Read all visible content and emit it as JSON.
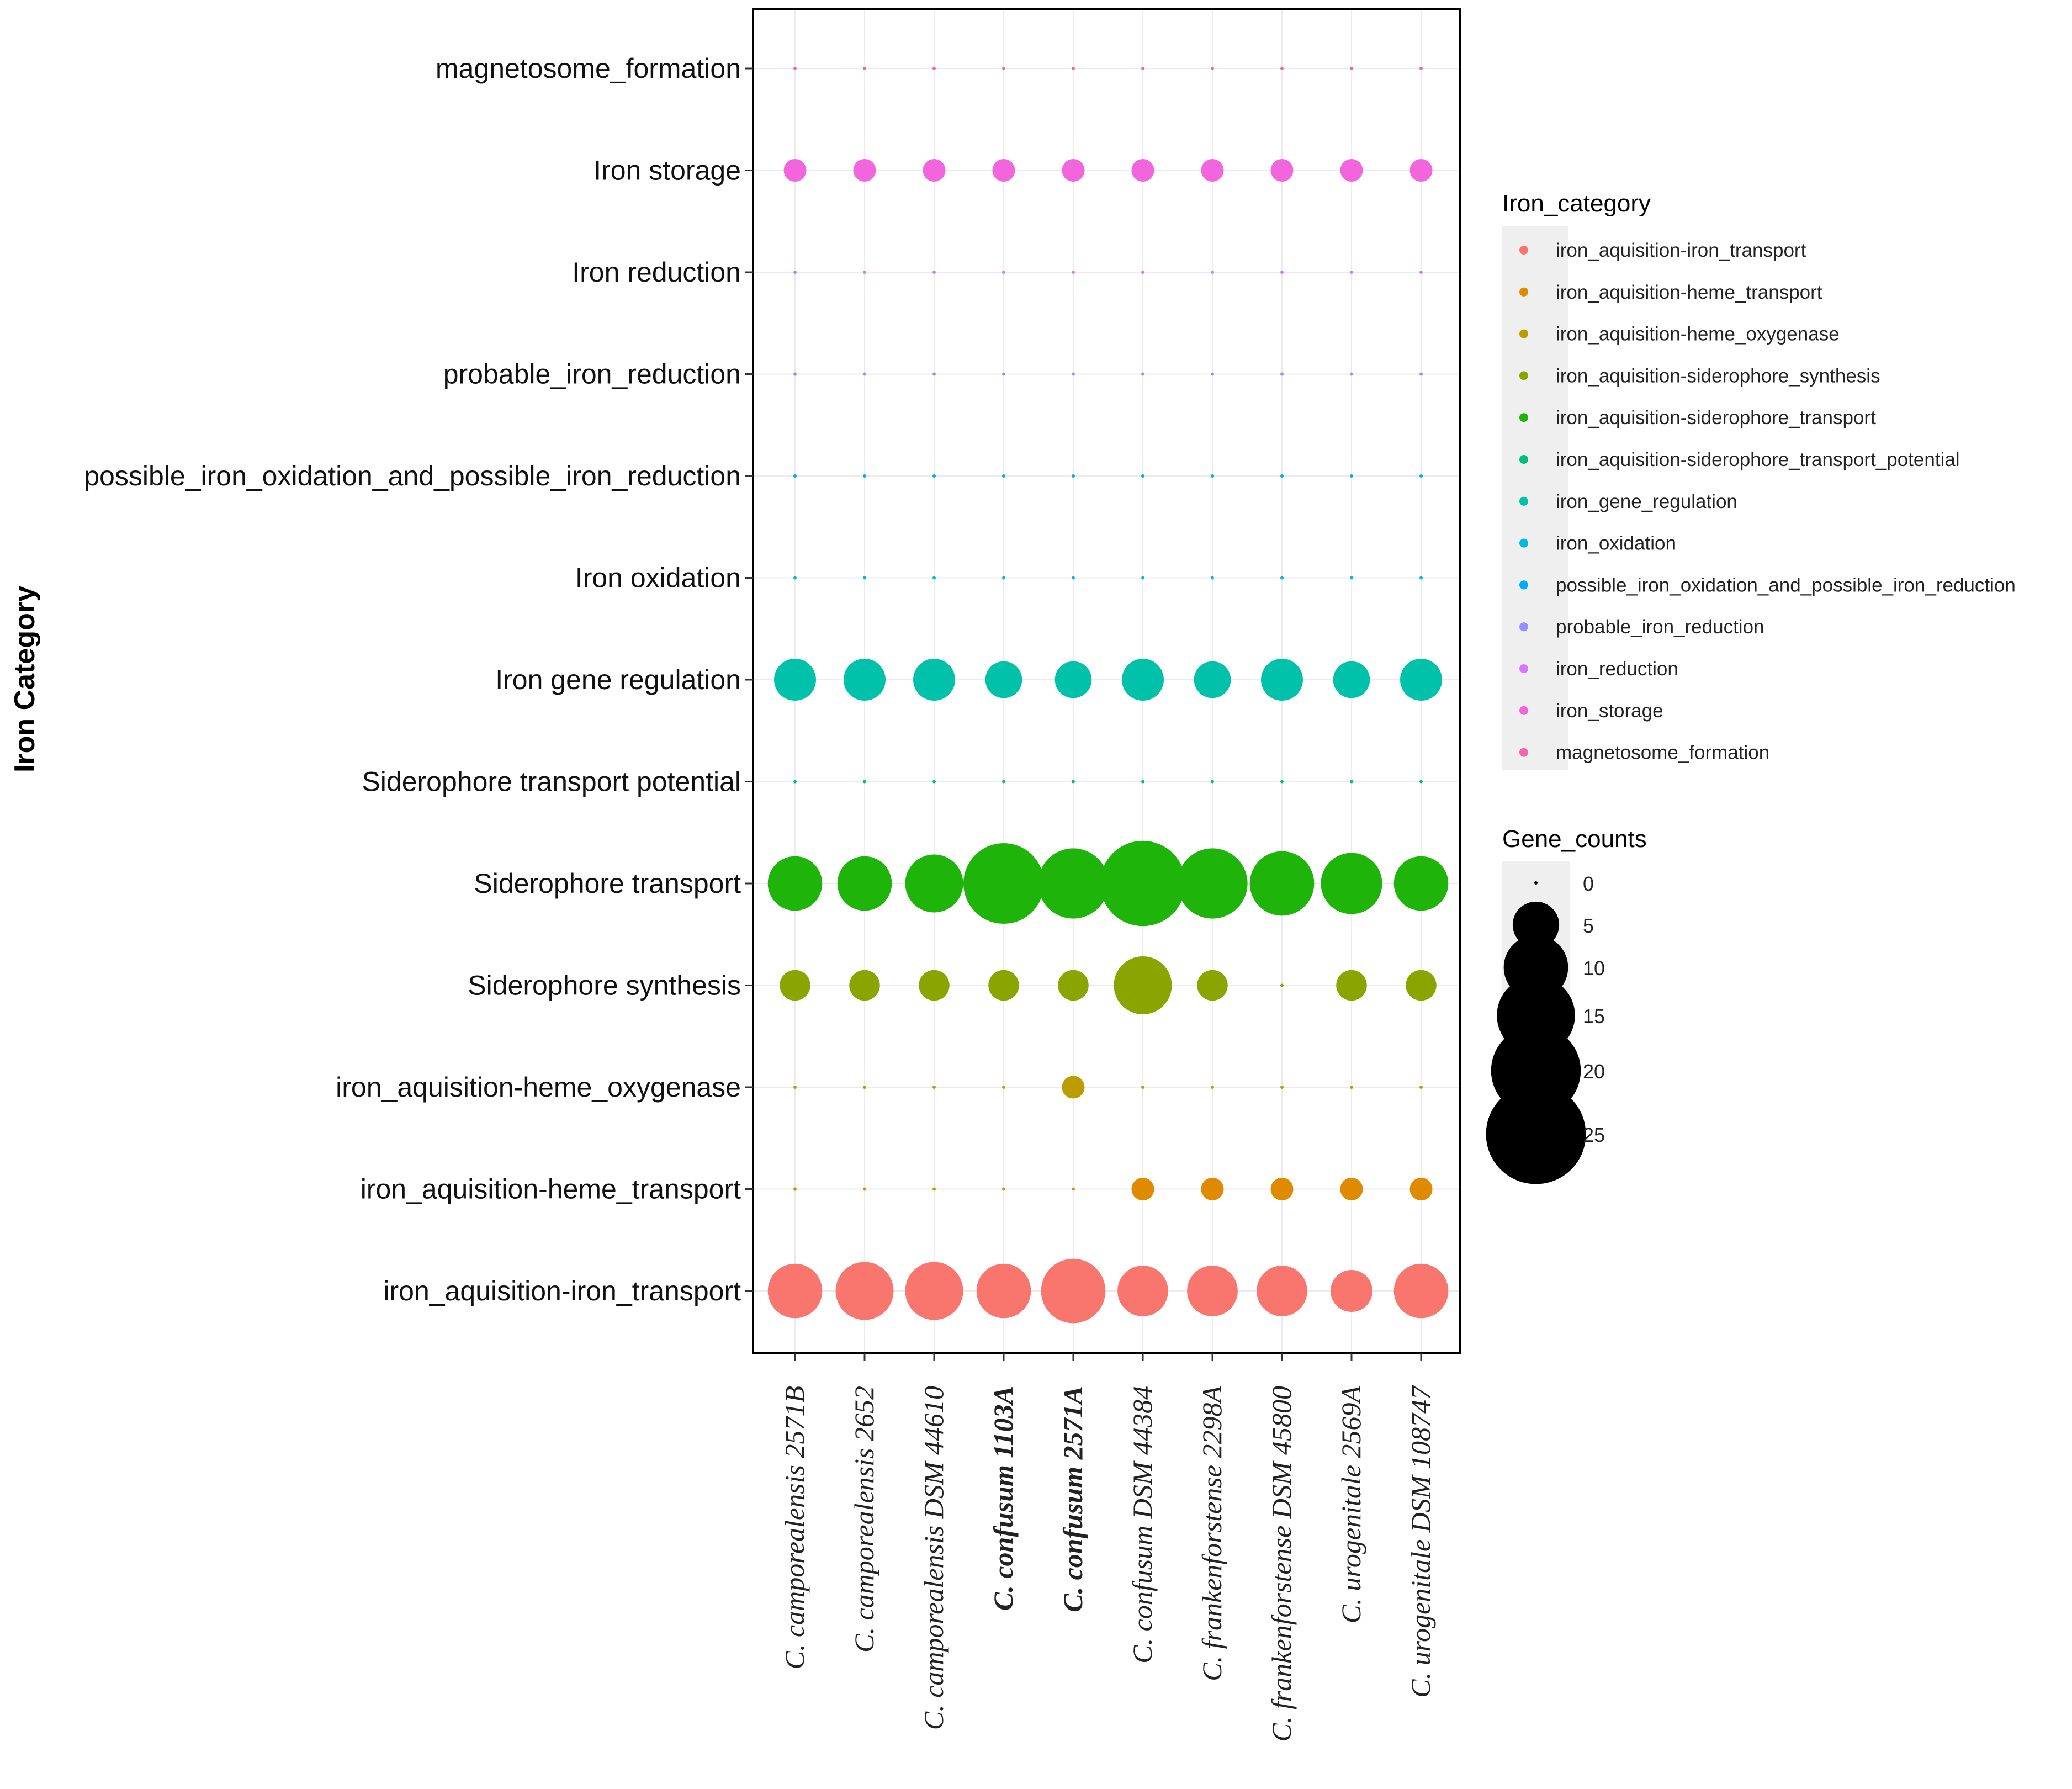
{
  "chart_data": {
    "type": "dot",
    "ylabel": "Iron Category",
    "strains": [
      {
        "label": "C. camporealensis 2571B",
        "bold": false
      },
      {
        "label": "C. camporealensis 2652",
        "bold": false
      },
      {
        "label": "C. camporealensis DSM 44610",
        "bold": false
      },
      {
        "label": "C. confusum 1103A",
        "bold": true
      },
      {
        "label": "C. confusum 2571A",
        "bold": true
      },
      {
        "label": "C. confusum DSM 44384",
        "bold": false
      },
      {
        "label": "C. frankenforstense 2298A",
        "bold": false
      },
      {
        "label": "C. frankenforstense DSM 45800",
        "bold": false
      },
      {
        "label": "C. urogenitale 2569A",
        "bold": false
      },
      {
        "label": "C. urogenitale DSM 108747",
        "bold": false
      }
    ],
    "rows": [
      {
        "label": "magnetosome_formation",
        "color": "#F564A9",
        "values": [
          0,
          0,
          0,
          0,
          0,
          0,
          0,
          0,
          0,
          0
        ]
      },
      {
        "label": "Iron storage",
        "color": "#F265DC",
        "values": [
          1,
          1,
          1,
          1,
          1,
          1,
          1,
          1,
          1,
          1
        ]
      },
      {
        "label": "Iron reduction",
        "color": "#D478FE",
        "values": [
          0,
          0,
          0,
          0,
          0,
          0,
          0,
          0,
          0,
          0
        ]
      },
      {
        "label": "probable_iron_reduction",
        "color": "#9590FF",
        "values": [
          0,
          0,
          0,
          0,
          0,
          0,
          0,
          0,
          0,
          0
        ]
      },
      {
        "label": "possible_iron_oxidation_and_possible_iron_reduction",
        "color": "#00ABFD",
        "values": [
          0,
          0,
          0,
          0,
          0,
          0,
          0,
          0,
          0,
          0
        ]
      },
      {
        "label": "Iron oxidation",
        "color": "#00BAE0",
        "values": [
          0,
          0,
          0,
          0,
          0,
          0,
          0,
          0,
          0,
          0
        ]
      },
      {
        "label": "Iron gene regulation",
        "color": "#00C1AA",
        "values": [
          4,
          4,
          4,
          3,
          3,
          4,
          3,
          4,
          3,
          4
        ]
      },
      {
        "label": "Siderophore transport potential",
        "color": "#00BF7D",
        "values": [
          0,
          0,
          0,
          0,
          0,
          0,
          0,
          0,
          0,
          0
        ]
      },
      {
        "label": "Siderophore transport",
        "color": "#1FB40A",
        "values": [
          7,
          7,
          8,
          16,
          12,
          18,
          12,
          10,
          9,
          7
        ]
      },
      {
        "label": "Siderophore synthesis",
        "color": "#8AA400",
        "values": [
          2,
          2,
          2,
          2,
          2,
          8,
          2,
          0,
          2,
          2
        ]
      },
      {
        "label": "iron_aquisition-heme_oxygenase",
        "color": "#BB9D00",
        "values": [
          0,
          0,
          0,
          0,
          1,
          0,
          0,
          0,
          0,
          0
        ]
      },
      {
        "label": "iron_aquisition-heme_transport",
        "color": "#E08A00",
        "values": [
          0,
          0,
          0,
          0,
          0,
          1,
          1,
          1,
          1,
          1
        ]
      },
      {
        "label": "iron_aquisition-iron_transport",
        "color": "#F8766D",
        "values": [
          7,
          8,
          8,
          7,
          10,
          6,
          6,
          6,
          4,
          7
        ]
      }
    ],
    "legend_color": {
      "title": "Iron_category",
      "items": [
        {
          "label": "iron_aquisition-iron_transport",
          "color": "#F8766D"
        },
        {
          "label": "iron_aquisition-heme_transport",
          "color": "#E08A00"
        },
        {
          "label": "iron_aquisition-heme_oxygenase",
          "color": "#BB9D00"
        },
        {
          "label": "iron_aquisition-siderophore_synthesis",
          "color": "#8AA400"
        },
        {
          "label": "iron_aquisition-siderophore_transport",
          "color": "#1FB40A"
        },
        {
          "label": "iron_aquisition-siderophore_transport_potential",
          "color": "#00BF7D"
        },
        {
          "label": "iron_gene_regulation",
          "color": "#00C1AA"
        },
        {
          "label": "iron_oxidation",
          "color": "#00BAE0"
        },
        {
          "label": "possible_iron_oxidation_and_possible_iron_reduction",
          "color": "#00ABFD"
        },
        {
          "label": "probable_iron_reduction",
          "color": "#9590FF"
        },
        {
          "label": "iron_reduction",
          "color": "#D478FE"
        },
        {
          "label": "iron_storage",
          "color": "#F265DC"
        },
        {
          "label": "magnetosome_formation",
          "color": "#F564A9"
        }
      ]
    },
    "legend_size": {
      "title": "Gene_counts",
      "breaks": [
        0,
        5,
        10,
        15,
        20,
        25
      ],
      "labels": [
        "0",
        "5",
        "10",
        "15",
        "20",
        "25"
      ]
    }
  }
}
